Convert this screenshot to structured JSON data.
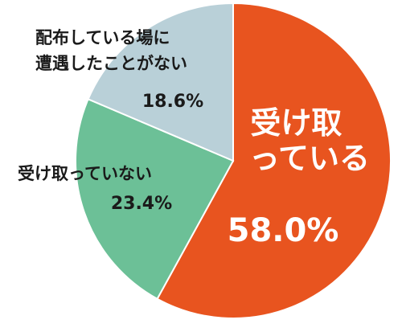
{
  "chart_data": {
    "type": "pie",
    "start": "12 o'clock",
    "direction": "clockwise",
    "slices": [
      {
        "name_lines": [
          "受け取",
          "っている"
        ],
        "value": 58.0,
        "value_label": "58.0%",
        "color": "#e8541f",
        "label_color": "#ffffff"
      },
      {
        "name_lines": [
          "受け取っていない"
        ],
        "value": 23.4,
        "value_label": "23.4%",
        "color": "#6cc097",
        "label_color": "#1a1a1a"
      },
      {
        "name_lines": [
          "配布している場に",
          "遭遇したことがない"
        ],
        "value": 18.6,
        "value_label": "18.6%",
        "color": "#b9d0d8",
        "label_color": "#1a1a1a"
      }
    ]
  }
}
